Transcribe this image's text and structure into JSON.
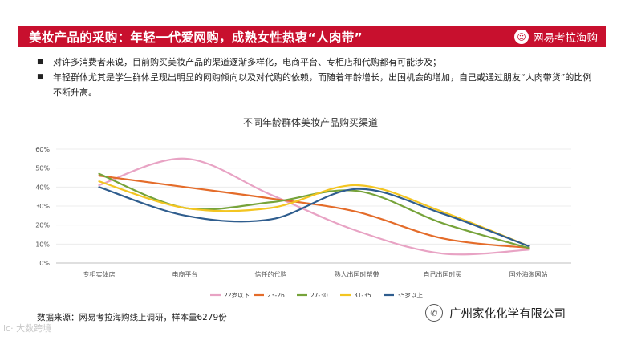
{
  "banner": {
    "title": "美妆产品的采购：年轻一代爱网购，成熟女性热衷“人肉带”",
    "brand_mark": "☺",
    "brand_name": "网易考拉海购"
  },
  "bullets": [
    "对许多消费者来说，目前购买美妆产品的渠道逐渐多样化，电商平台、专柜店和代购都有可能涉及；",
    "年轻群体尤其是学生群体呈现出明显的网购倾向以及对代购的依赖，而随着年龄增长，出国机会的增加，自己或通过朋友“人肉带货”的比例不断升高。"
  ],
  "chart_data": {
    "type": "line",
    "title": "不同年龄群体美妆产品购买渠道",
    "categories": [
      "专柜实体店",
      "电商平台",
      "信任的代购",
      "熟人出国时帮带",
      "自己出国时买",
      "国外海淘网站"
    ],
    "ylim": [
      0,
      60
    ],
    "yticks": [
      "0%",
      "10%",
      "20%",
      "30%",
      "40%",
      "50%",
      "60%"
    ],
    "ytick_values": [
      0,
      10,
      20,
      30,
      40,
      50,
      60
    ],
    "smooth": true,
    "legend_position": "bottom",
    "series": [
      {
        "name": "22岁以下",
        "color": "#e8a3c4",
        "values": [
          41,
          55,
          36,
          17,
          5,
          7
        ]
      },
      {
        "name": "23-26",
        "color": "#e46c2a",
        "values": [
          46,
          40,
          34,
          27,
          13,
          8
        ]
      },
      {
        "name": "27-30",
        "color": "#76a33a",
        "values": [
          47,
          29,
          32,
          38,
          21,
          8
        ]
      },
      {
        "name": "31-35",
        "color": "#f3c521",
        "values": [
          43,
          29,
          29,
          41,
          27,
          9
        ]
      },
      {
        "name": "35岁以上",
        "color": "#2f5d8e",
        "values": [
          40,
          25,
          23,
          39,
          26,
          9
        ]
      }
    ]
  },
  "source": "数据来源：网易考拉海购线上调研，样本量6279份",
  "watermark_left": "ic· 大数跨境",
  "watermark_right": {
    "icon": "✆",
    "text": "广州家化化学有限公司"
  }
}
